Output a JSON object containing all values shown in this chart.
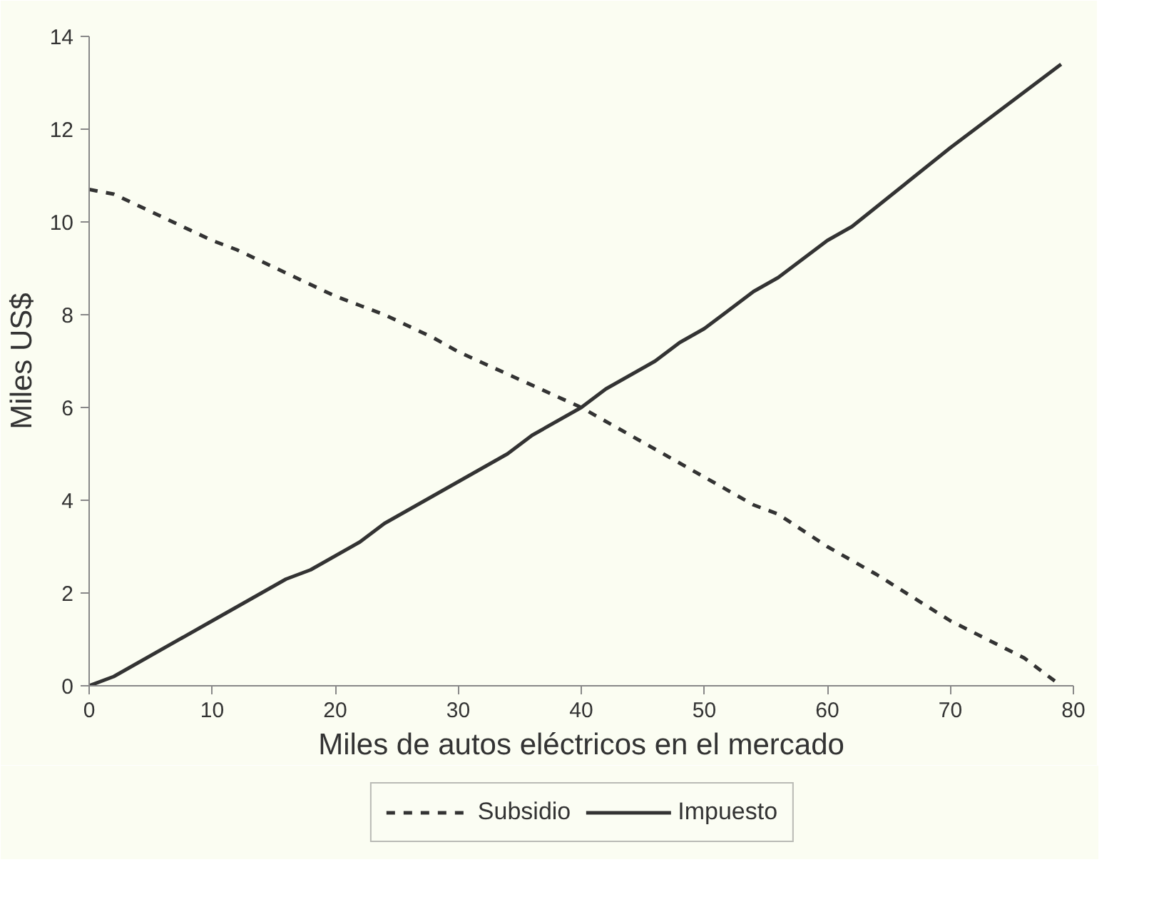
{
  "chart_data": {
    "type": "line",
    "xlabel": "Miles de autos eléctricos en el mercado",
    "ylabel": "Miles US$",
    "xlim": [
      0,
      80
    ],
    "ylim": [
      0,
      14
    ],
    "xticks": [
      0,
      10,
      20,
      30,
      40,
      50,
      60,
      70,
      80
    ],
    "yticks": [
      0,
      2,
      4,
      6,
      8,
      10,
      12,
      14
    ],
    "grid": false,
    "legend": "bottom",
    "marker": "none",
    "series": [
      {
        "name": "Subsidio",
        "color": "#333333",
        "line_style": "dashed",
        "x": [
          0,
          2,
          10,
          12,
          16,
          20,
          22,
          24,
          28,
          30,
          40,
          50,
          54,
          56,
          60,
          64,
          70,
          76,
          79
        ],
        "values": [
          10.7,
          10.6,
          9.6,
          9.4,
          8.9,
          8.4,
          8.2,
          8.0,
          7.5,
          7.2,
          6.0,
          4.5,
          3.9,
          3.7,
          3.0,
          2.4,
          1.4,
          0.6,
          0
        ]
      },
      {
        "name": "Impuesto",
        "color": "#333333",
        "line_style": "solid",
        "x": [
          0,
          2,
          10,
          16,
          18,
          22,
          24,
          30,
          34,
          36,
          40,
          42,
          46,
          48,
          50,
          54,
          56,
          60,
          62,
          70,
          79
        ],
        "values": [
          0,
          0.2,
          1.4,
          2.3,
          2.5,
          3.1,
          3.5,
          4.4,
          5.0,
          5.4,
          6.0,
          6.4,
          7.0,
          7.4,
          7.7,
          8.5,
          8.8,
          9.6,
          9.9,
          11.6,
          13.4
        ]
      }
    ]
  }
}
